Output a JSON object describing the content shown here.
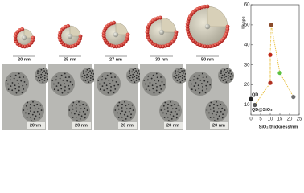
{
  "panels": [
    {
      "shell": "20 nm",
      "scale_bar": "20nm"
    },
    {
      "shell": "25 nm",
      "scale_bar": "20 nm"
    },
    {
      "shell": "27 nm",
      "scale_bar": "20 nm"
    },
    {
      "shell": "30 nm",
      "scale_bar": "20 nm"
    },
    {
      "shell": "50 nm",
      "scale_bar": "20 nm"
    }
  ],
  "chart_data": {
    "type": "scatter",
    "ylabel": "I/kcps",
    "xlabel": "SiO₂ thickness/nm",
    "xlim": [
      0,
      25
    ],
    "ylim": [
      5,
      60
    ],
    "xticks": [
      0,
      5,
      10,
      15,
      20,
      25
    ],
    "yticks": [
      10,
      20,
      30,
      40,
      50,
      60
    ],
    "x": [
      0,
      2,
      10,
      10,
      10.5,
      15,
      22
    ],
    "y": [
      13,
      10,
      21,
      35,
      50,
      26,
      14
    ],
    "colors": [
      "#222222",
      "#555555",
      "#b03020",
      "#c02818",
      "#8a4a2a",
      "#5cc040",
      "#707070"
    ],
    "line_color": "#e8c040",
    "annotations": [
      "QD",
      "QD@SiO₂"
    ]
  }
}
